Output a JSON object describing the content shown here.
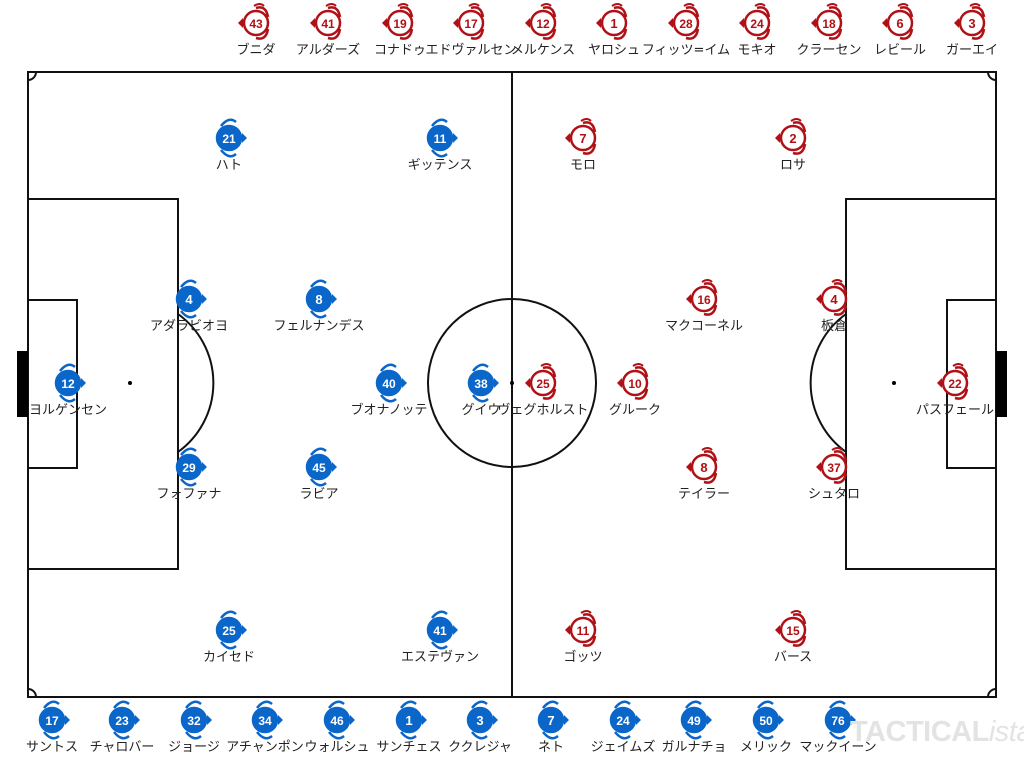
{
  "colors": {
    "home": "#0a66c8",
    "away": "#b11116",
    "lines": "#111111"
  },
  "home_team": {
    "marker_icon": "blue-filled-player-marker-facing-right",
    "starters": [
      {
        "number": "21",
        "name": "ハト"
      },
      {
        "number": "11",
        "name": "ギッテンス"
      },
      {
        "number": "4",
        "name": "アダラビオヨ"
      },
      {
        "number": "8",
        "name": "フェルナンデス"
      },
      {
        "number": "12",
        "name": "ヨルゲンセン"
      },
      {
        "number": "40",
        "name": "ブオナノッテ"
      },
      {
        "number": "38",
        "name": "グイウ"
      },
      {
        "number": "29",
        "name": "フォファナ"
      },
      {
        "number": "45",
        "name": "ラビア"
      },
      {
        "number": "25",
        "name": "カイセド"
      },
      {
        "number": "41",
        "name": "エステヴァン"
      }
    ],
    "bench": [
      {
        "number": "17",
        "name": "サントス"
      },
      {
        "number": "23",
        "name": "チャロバー"
      },
      {
        "number": "32",
        "name": "ジョージ"
      },
      {
        "number": "34",
        "name": "アチャンポン"
      },
      {
        "number": "46",
        "name": "ウォルシュ"
      },
      {
        "number": "1",
        "name": "サンチェス"
      },
      {
        "number": "3",
        "name": "ククレジャ"
      },
      {
        "number": "7",
        "name": "ネト"
      },
      {
        "number": "24",
        "name": "ジェイムズ"
      },
      {
        "number": "49",
        "name": "ガルナチョ"
      },
      {
        "number": "50",
        "name": "メリック"
      },
      {
        "number": "76",
        "name": "マックイーン"
      }
    ]
  },
  "away_team": {
    "marker_icon": "red-outlined-player-marker-facing-left",
    "starters": [
      {
        "number": "7",
        "name": "モロ"
      },
      {
        "number": "2",
        "name": "ロサ"
      },
      {
        "number": "16",
        "name": "マクコーネル"
      },
      {
        "number": "4",
        "name": "板倉"
      },
      {
        "number": "25",
        "name": "ヴェグホルスト"
      },
      {
        "number": "10",
        "name": "グルーク"
      },
      {
        "number": "22",
        "name": "パスフェール"
      },
      {
        "number": "8",
        "name": "テイラー"
      },
      {
        "number": "37",
        "name": "シュタロ"
      },
      {
        "number": "11",
        "name": "ゴッツ"
      },
      {
        "number": "15",
        "name": "バース"
      }
    ],
    "bench": [
      {
        "number": "43",
        "name": "ブニダ"
      },
      {
        "number": "41",
        "name": "アルダーズ"
      },
      {
        "number": "19",
        "name": "コナドゥ"
      },
      {
        "number": "17",
        "name": "エドヴァルセン"
      },
      {
        "number": "12",
        "name": "メルケンス"
      },
      {
        "number": "1",
        "name": "ヤロシュ"
      },
      {
        "number": "28",
        "name": "フィッツ=イム"
      },
      {
        "number": "24",
        "name": "モキオ"
      },
      {
        "number": "18",
        "name": "クラーセン"
      },
      {
        "number": "6",
        "name": "レビール"
      },
      {
        "number": "3",
        "name": "ガーエイ"
      }
    ]
  },
  "watermark": {
    "main": "TACTICAL",
    "suffix": "ista"
  }
}
